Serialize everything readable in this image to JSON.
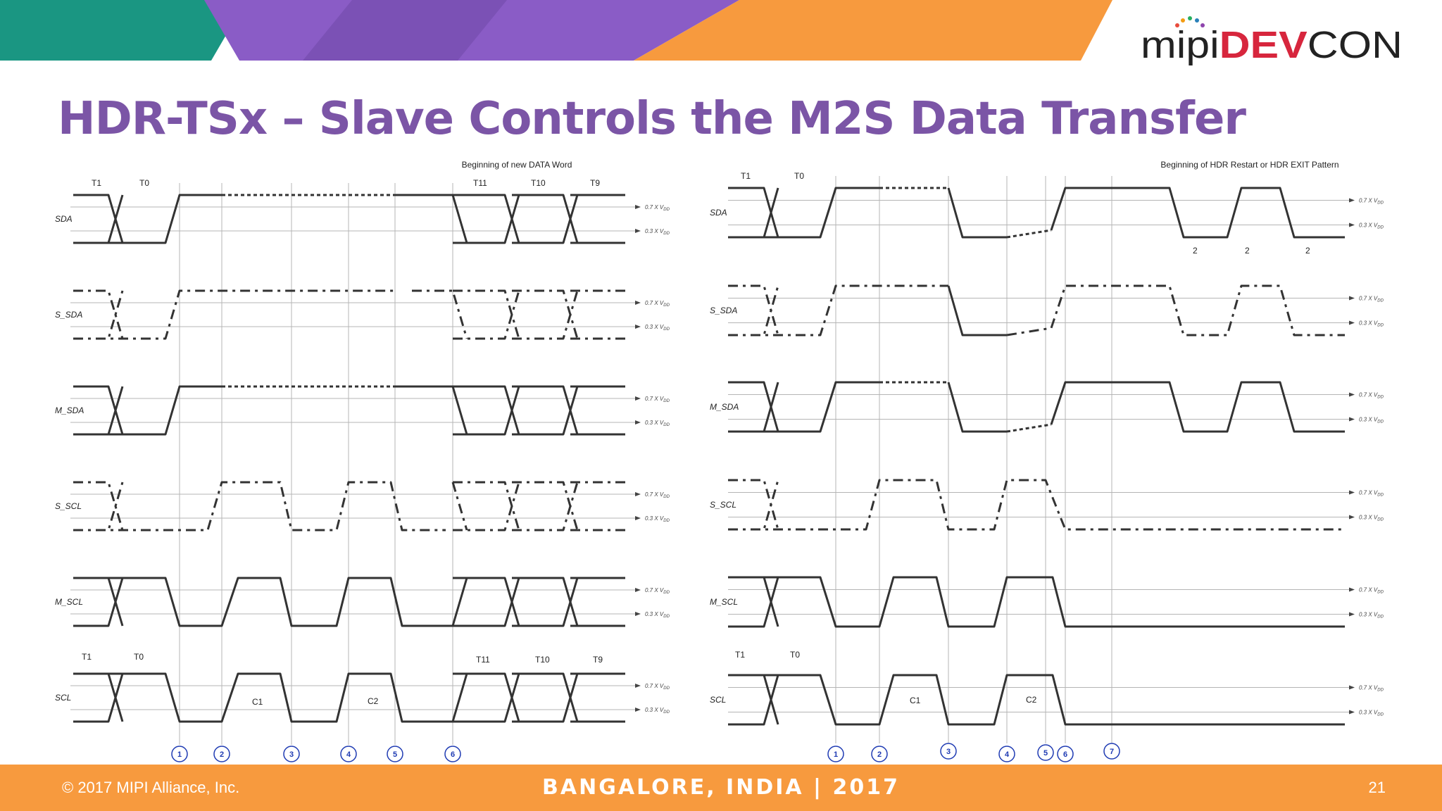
{
  "slide": {
    "title": "HDR-TSx – Slave Controls the M2S Data Transfer",
    "logo": {
      "prefix": "mipi",
      "highlight": "DEV",
      "suffix": "CON",
      "colors": {
        "prefix": "#222222",
        "highlight": "#d7263d",
        "suffix": "#222222"
      }
    },
    "footer": {
      "copyright": "© 2017 MIPI Alliance, Inc.",
      "event": "BANGALORE, INDIA | 2017",
      "page": "21"
    },
    "colors": {
      "title": "#7b55a6",
      "teal": "#1a9682",
      "purple": "#8a5cc6",
      "orange": "#f79a3e",
      "marker": "#1f3bb3",
      "trace": "#333333"
    }
  },
  "left_diagram": {
    "annotation": "Beginning of new DATA Word",
    "threshold_high": "0.7 X V",
    "threshold_low": "0.3 X V",
    "threshold_sub": "DD",
    "signals": [
      "SDA",
      "S_SDA",
      "M_SDA",
      "S_SCL",
      "M_SCL",
      "SCL"
    ],
    "top_labels": [
      "T1",
      "T0",
      "T11",
      "T10",
      "T9"
    ],
    "bottom_labels": [
      "T1",
      "T0",
      "T11",
      "T10",
      "T9"
    ],
    "clock_labels": [
      "C1",
      "C2"
    ],
    "markers": [
      "1",
      "2",
      "3",
      "4",
      "5",
      "6"
    ]
  },
  "right_diagram": {
    "annotation": "Beginning of HDR Restart  or HDR EXIT Pattern",
    "threshold_high": "0.7 X V",
    "threshold_low": "0.3 X V",
    "threshold_sub": "DD",
    "signals": [
      "SDA",
      "S_SDA",
      "M_SDA",
      "S_SCL",
      "M_SCL",
      "SCL"
    ],
    "top_labels": [
      "T1",
      "T0"
    ],
    "bottom_labels": [
      "T1",
      "T0"
    ],
    "clock_labels": [
      "C1",
      "C2"
    ],
    "pattern_labels": [
      "2",
      "2",
      "2"
    ],
    "markers": [
      "1",
      "2",
      "3",
      "4",
      "5",
      "6",
      "7"
    ]
  }
}
